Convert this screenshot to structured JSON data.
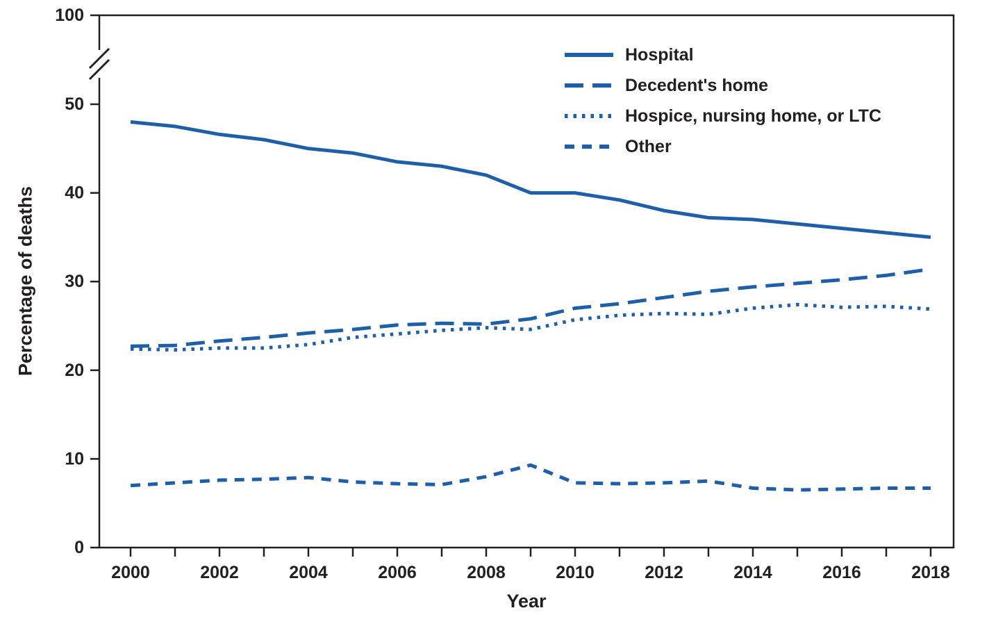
{
  "chart_data": {
    "type": "line",
    "xlabel": "Year",
    "ylabel": "Percentage of deaths",
    "line_color": "#1e5fa8",
    "axis_color": "#231f20",
    "grid": false,
    "legend_position": "inside-top-right",
    "ylim_linear": [
      0,
      50
    ],
    "y_ticks": [
      0,
      10,
      20,
      30,
      40,
      50
    ],
    "y_break_top_tick": 100,
    "axis_break": true,
    "x": [
      2000,
      2001,
      2002,
      2003,
      2004,
      2005,
      2006,
      2007,
      2008,
      2009,
      2010,
      2011,
      2012,
      2013,
      2014,
      2015,
      2016,
      2017,
      2018
    ],
    "x_tick_labels": [
      2000,
      2002,
      2004,
      2006,
      2008,
      2010,
      2012,
      2014,
      2016,
      2018
    ],
    "series": [
      {
        "name": "Hospital",
        "style": "solid",
        "values": [
          48,
          47.5,
          46.6,
          46,
          45,
          44.5,
          43.5,
          43,
          42,
          40,
          40,
          39.2,
          38,
          37.2,
          37,
          36.5,
          36,
          35.5,
          35
        ]
      },
      {
        "name": "Decedent's home",
        "style": "long-dash",
        "values": [
          22.7,
          22.8,
          23.3,
          23.7,
          24.2,
          24.6,
          25.1,
          25.3,
          25.2,
          25.8,
          27,
          27.5,
          28.2,
          28.9,
          29.4,
          29.8,
          30.2,
          30.7,
          31.4
        ]
      },
      {
        "name": "Hospice, nursing home, or LTC",
        "style": "dotted",
        "values": [
          22.4,
          22.3,
          22.5,
          22.5,
          22.9,
          23.7,
          24.1,
          24.5,
          24.8,
          24.6,
          25.7,
          26.2,
          26.4,
          26.3,
          27,
          27.4,
          27.1,
          27.2,
          26.9
        ]
      },
      {
        "name": "Other",
        "style": "short-dash",
        "values": [
          7,
          7.3,
          7.6,
          7.7,
          7.9,
          7.4,
          7.2,
          7.1,
          8,
          9.3,
          7.3,
          7.2,
          7.3,
          7.5,
          6.7,
          6.5,
          6.6,
          6.7,
          6.7
        ]
      }
    ]
  }
}
